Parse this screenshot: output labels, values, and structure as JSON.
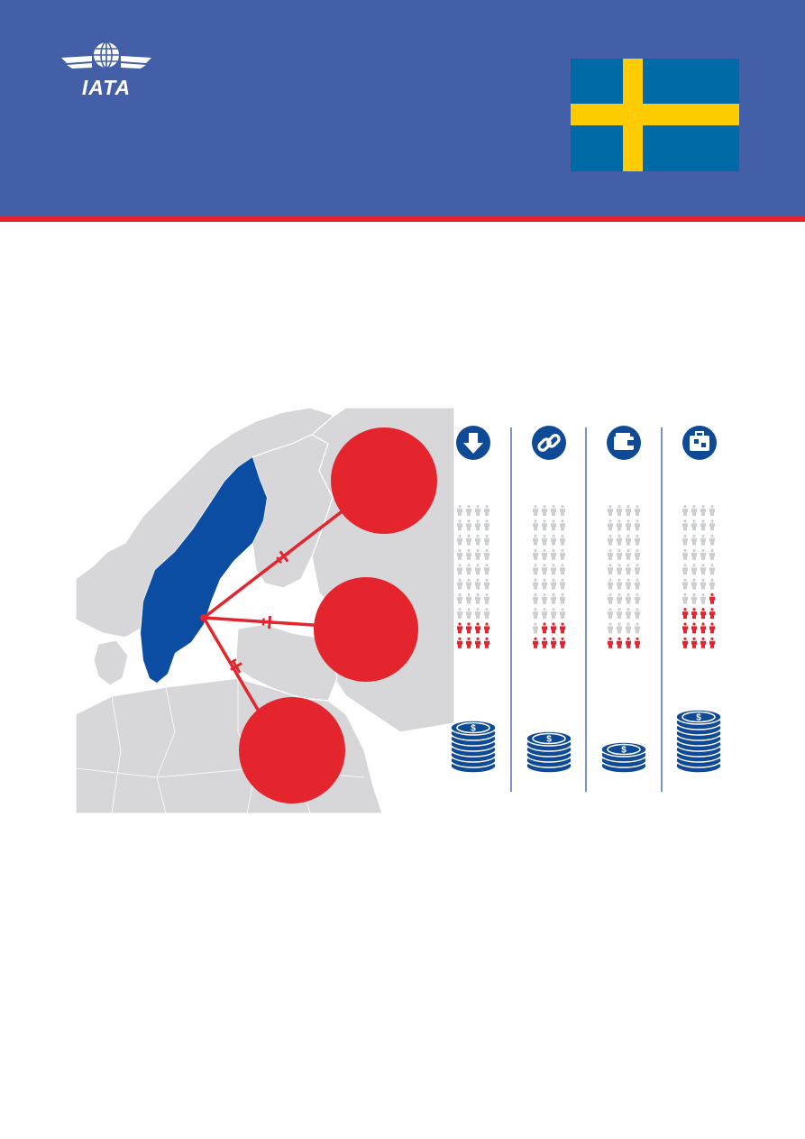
{
  "header": {
    "logo_text": "IATA",
    "background": "#435fa8",
    "accent_stripe": "#e4252e"
  },
  "flag": {
    "country": "Sweden",
    "field_color": "#006aa7",
    "cross_color": "#fecc00"
  },
  "map": {
    "highlight_color": "#0a4da2",
    "land_color": "#d7d7d9",
    "route_color": "#e4252e",
    "icons": [
      "plane-icon",
      "plane-icon",
      "plane-icon"
    ]
  },
  "columns": [
    {
      "icon": "arrow-down-icon",
      "people_highlighted": 8,
      "coin_stack": 8
    },
    {
      "icon": "link-icon",
      "people_highlighted": 7,
      "coin_stack": 6
    },
    {
      "icon": "wallet-icon",
      "people_highlighted": 4,
      "coin_stack": 4
    },
    {
      "icon": "luggage-icon",
      "people_highlighted": 13,
      "coin_stack": 10
    }
  ]
}
